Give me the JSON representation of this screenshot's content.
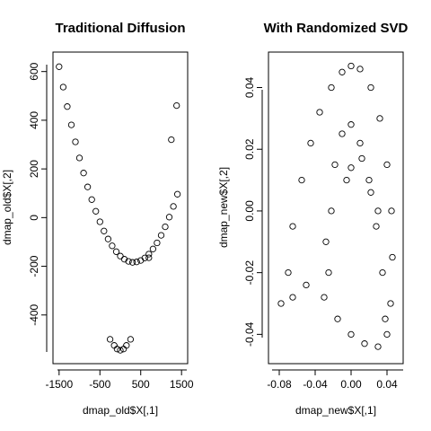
{
  "chart_data": [
    {
      "type": "scatter",
      "title": "Traditional Diffusion",
      "xlabel": "dmap_old$X[,1]",
      "ylabel": "dmap_old$X[,2]",
      "xlim": [
        -1650,
        1650
      ],
      "ylim": [
        -600,
        680
      ],
      "x_ticks": [
        -1500,
        -500,
        500,
        1500
      ],
      "x_tick_labels": [
        "-1500",
        "-500",
        "500",
        "1500"
      ],
      "y_ticks": [
        -400,
        -200,
        0,
        200,
        400,
        600
      ],
      "y_tick_labels": [
        "-400",
        "-200",
        "0",
        "200",
        "400",
        "600"
      ],
      "grid": false,
      "marker": "open-circle",
      "points": [
        [
          -1500,
          620
        ],
        [
          -1400,
          536
        ],
        [
          -1300,
          456
        ],
        [
          -1200,
          381
        ],
        [
          -1100,
          311
        ],
        [
          -1000,
          245
        ],
        [
          -900,
          183
        ],
        [
          -800,
          126
        ],
        [
          -700,
          74
        ],
        [
          -600,
          26
        ],
        [
          -500,
          -17
        ],
        [
          -400,
          -55
        ],
        [
          -300,
          -88
        ],
        [
          -200,
          -116
        ],
        [
          -100,
          -140
        ],
        [
          0,
          -158
        ],
        [
          100,
          -171
        ],
        [
          200,
          -180
        ],
        [
          300,
          -184
        ],
        [
          400,
          -182
        ],
        [
          500,
          -176
        ],
        [
          600,
          -166
        ],
        [
          700,
          -150
        ],
        [
          800,
          -129
        ],
        [
          900,
          -104
        ],
        [
          1000,
          -73
        ],
        [
          1100,
          -38
        ],
        [
          1200,
          2
        ],
        [
          1300,
          46
        ],
        [
          1400,
          96
        ],
        [
          -250,
          -500
        ],
        [
          -150,
          -525
        ],
        [
          -80,
          -540
        ],
        [
          0,
          -545
        ],
        [
          80,
          -540
        ],
        [
          150,
          -525
        ],
        [
          250,
          -500
        ],
        [
          700,
          -165
        ],
        [
          1250,
          320
        ],
        [
          1380,
          460
        ]
      ]
    },
    {
      "type": "scatter",
      "title": "With Randomized SVD",
      "xlabel": "dmap_new$X[,1]",
      "ylabel": "dmap_new$X[,2]",
      "xlim": [
        -0.092,
        0.058
      ],
      "ylim": [
        -0.0495,
        0.0515
      ],
      "x_ticks": [
        -0.08,
        -0.04,
        0.0,
        0.04
      ],
      "x_tick_labels": [
        "-0.08",
        "-0.04",
        "0.00",
        "0.04"
      ],
      "y_ticks": [
        -0.04,
        -0.02,
        0.0,
        0.02,
        0.04
      ],
      "y_tick_labels": [
        "-0.04",
        "-0.02",
        "0.00",
        "0.02",
        "0.04"
      ],
      "grid": false,
      "marker": "open-circle",
      "points": [
        [
          -0.07,
          -0.02
        ],
        [
          -0.065,
          -0.005
        ],
        [
          -0.055,
          0.01
        ],
        [
          -0.045,
          0.022
        ],
        [
          -0.035,
          0.032
        ],
        [
          -0.022,
          0.04
        ],
        [
          -0.01,
          0.045
        ],
        [
          0.0,
          0.047
        ],
        [
          0.01,
          0.046
        ],
        [
          0.022,
          0.04
        ],
        [
          0.032,
          0.03
        ],
        [
          0.04,
          0.015
        ],
        [
          0.045,
          0.0
        ],
        [
          0.046,
          -0.015
        ],
        [
          0.044,
          -0.03
        ],
        [
          0.04,
          -0.04
        ],
        [
          0.03,
          -0.044
        ],
        [
          0.015,
          -0.043
        ],
        [
          0.0,
          -0.04
        ],
        [
          -0.015,
          -0.035
        ],
        [
          -0.03,
          -0.028
        ],
        [
          -0.05,
          -0.024
        ],
        [
          -0.065,
          -0.028
        ],
        [
          -0.078,
          -0.03
        ],
        [
          -0.025,
          -0.02
        ],
        [
          -0.022,
          0.0
        ],
        [
          -0.018,
          0.015
        ],
        [
          -0.01,
          0.025
        ],
        [
          0.0,
          0.028
        ],
        [
          0.01,
          0.022
        ],
        [
          0.02,
          0.01
        ],
        [
          0.028,
          -0.005
        ],
        [
          0.035,
          -0.02
        ],
        [
          0.038,
          -0.035
        ],
        [
          0.0,
          0.014
        ],
        [
          0.012,
          0.017
        ],
        [
          0.022,
          0.006
        ],
        [
          -0.005,
          0.01
        ],
        [
          0.03,
          0.0
        ],
        [
          -0.028,
          -0.01
        ]
      ]
    }
  ]
}
